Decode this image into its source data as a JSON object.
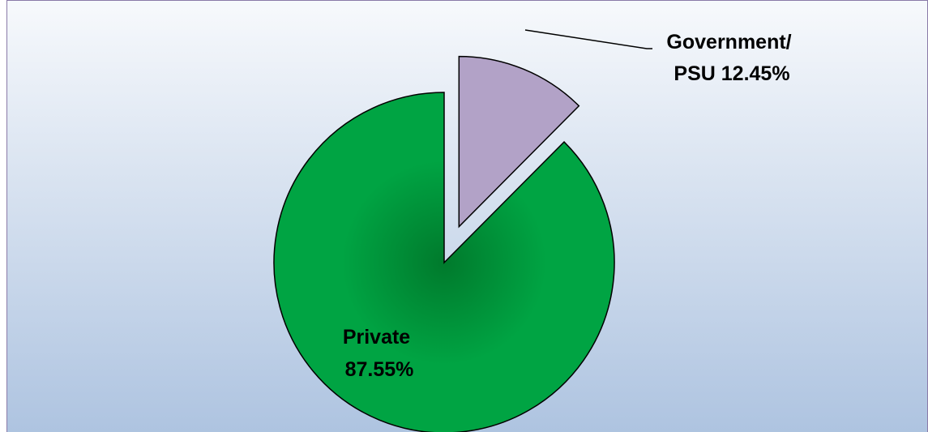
{
  "chart_data": {
    "type": "pie",
    "title": "",
    "slices": [
      {
        "name": "Government/ PSU",
        "value": 12.45,
        "value_label": "12.45%",
        "label_line1": "Government/",
        "label_line2": "PSU 12.45%",
        "exploded": true,
        "color": "#b2a2c7"
      },
      {
        "name": "Private",
        "value": 87.55,
        "value_label": "87.55%",
        "label_line1": "Private",
        "label_line2": "87.55%",
        "exploded": false,
        "color": "#00a443"
      }
    ],
    "legend": "none",
    "background": {
      "gradient_top": "#f7f9fc",
      "gradient_bottom": "#adc3e0",
      "border": "#8a7aa8"
    }
  }
}
